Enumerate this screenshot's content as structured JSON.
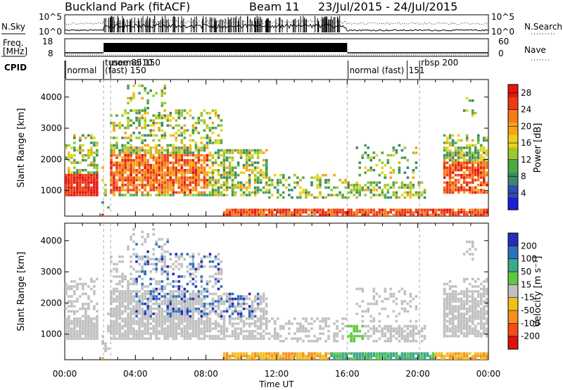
{
  "header": {
    "station": "Buckland Park (fitACF)",
    "beam": "Beam 11",
    "date_range": "23/Jul/2015 - 24/Jul/2015"
  },
  "top_panels": {
    "nsky_label": "N.Sky",
    "nsearch_label": "N.Search",
    "freq_label_1": "Freq.",
    "freq_label_2": "[MHz]",
    "nave_label": "Nave",
    "cpid_label": "CPID",
    "noise_left_ticks": [
      "10^5",
      "10^0"
    ],
    "noise_right_ticks": [
      "10^5",
      "10^0"
    ],
    "freq_left_ticks": [
      "18",
      "8"
    ],
    "freq_right_ticks": [
      "60",
      "0"
    ],
    "cpid_labels": [
      {
        "text": "normal",
        "t": 0.05
      },
      {
        "text": "tusee 8510",
        "t": 2.2
      },
      {
        "text": "(fast) 150",
        "t": 2.2
      },
      {
        "text": "normal 150",
        "t": 2.6
      },
      {
        "text": "normal (fast)",
        "t": 16.05
      },
      {
        "text": "151",
        "t": 19.4
      },
      {
        "text": "rbsp 200",
        "t": 20.1
      }
    ]
  },
  "chart_data": [
    {
      "type": "heatmap",
      "name": "power",
      "ylabel": "Slant Range [km]",
      "xlabel": "",
      "ylim": [
        180,
        4560
      ],
      "xlim_hours": [
        0,
        24
      ],
      "y_ticks": [
        1000,
        2000,
        3000,
        4000
      ],
      "colorbar": {
        "label": "Power [dB]",
        "ticks": [
          4,
          8,
          12,
          16,
          20,
          24,
          28
        ],
        "range": [
          0,
          30
        ],
        "colors": [
          "#1e1ed2",
          "#2f4fb0",
          "#3a8a6a",
          "#4ea845",
          "#9ac82e",
          "#e8d21a",
          "#f5a31a",
          "#f47a1a",
          "#ee3a14",
          "#e51610"
        ]
      }
    },
    {
      "type": "heatmap",
      "name": "velocity",
      "ylabel": "Slant Range [km]",
      "xlabel": "Time UT",
      "ylim": [
        180,
        4560
      ],
      "xlim_hours": [
        0,
        24
      ],
      "y_ticks": [
        1000,
        2000,
        3000,
        4000
      ],
      "x_ticks": [
        "00:00",
        "04:00",
        "08:00",
        "12:00",
        "16:00",
        "20:00",
        "00:00"
      ],
      "colorbar": {
        "label": "Velocity [m s⁻¹]",
        "ticks": [
          "200",
          "100",
          "50",
          "15",
          "-15",
          "-50",
          "-100",
          "-200"
        ],
        "colors": [
          "#2a2ab8",
          "#2f6fc0",
          "#3aa88a",
          "#5cc840",
          "#c0c0c0",
          "#f0c020",
          "#f59020",
          "#f05018",
          "#e01010"
        ]
      }
    }
  ]
}
